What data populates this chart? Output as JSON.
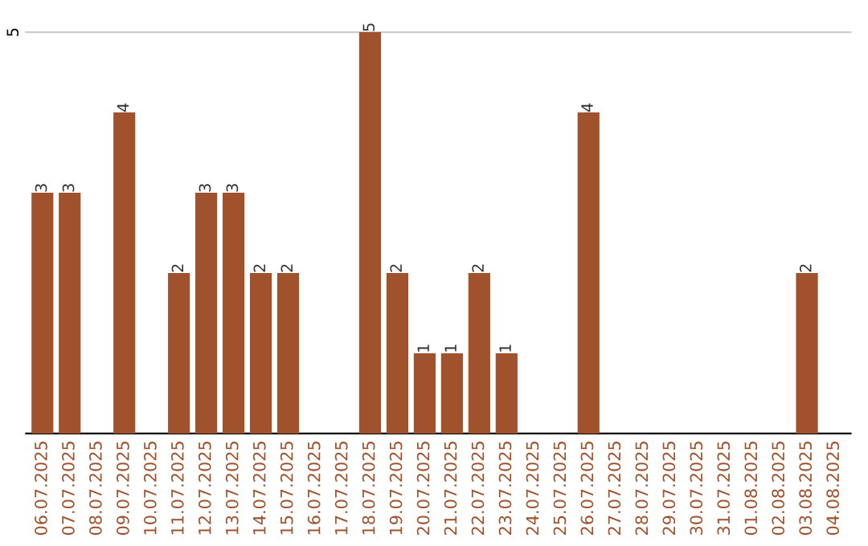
{
  "chart_data": {
    "type": "bar",
    "categories": [
      "06.07.2025",
      "07.07.2025",
      "08.07.2025",
      "09.07.2025",
      "10.07.2025",
      "11.07.2025",
      "12.07.2025",
      "13.07.2025",
      "14.07.2025",
      "15.07.2025",
      "16.07.2025",
      "17.07.2025",
      "18.07.2025",
      "19.07.2025",
      "20.07.2025",
      "21.07.2025",
      "22.07.2025",
      "23.07.2025",
      "24.07.2025",
      "25.07.2025",
      "26.07.2025",
      "27.07.2025",
      "28.07.2025",
      "29.07.2025",
      "30.07.2025",
      "31.07.2025",
      "01.08.2025",
      "02.08.2025",
      "03.08.2025",
      "04.08.2025"
    ],
    "values": [
      3,
      3,
      null,
      4,
      null,
      2,
      3,
      3,
      2,
      2,
      null,
      null,
      5,
      2,
      1,
      1,
      2,
      1,
      null,
      null,
      4,
      null,
      null,
      null,
      null,
      null,
      null,
      null,
      2,
      null
    ],
    "color": "#a0522d",
    "ylim": [
      0,
      5
    ],
    "yticks": [
      5
    ],
    "data_labels": true
  }
}
